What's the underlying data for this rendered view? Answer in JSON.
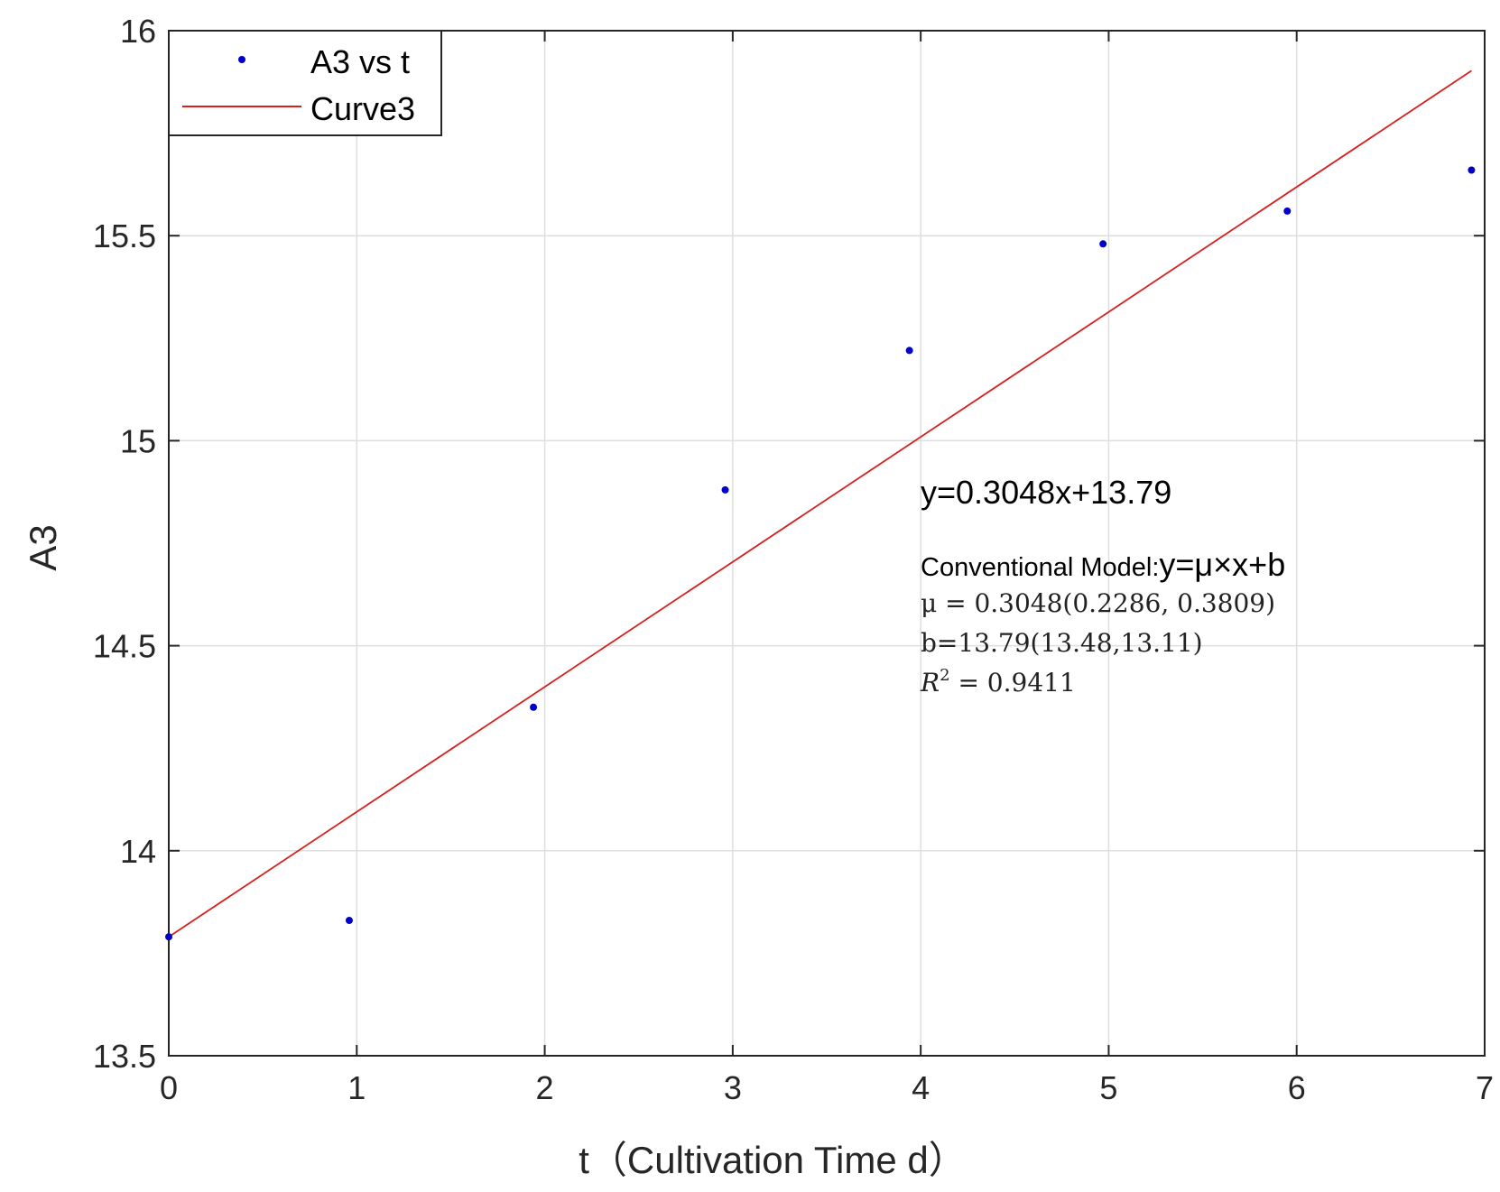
{
  "chart_data": {
    "type": "scatter",
    "title": "",
    "xlabel": "t（Cultivation Time d）",
    "ylabel": "A3",
    "xlim": [
      0,
      7
    ],
    "ylim": [
      13.5,
      16
    ],
    "x_ticks": [
      "0",
      "1",
      "2",
      "3",
      "4",
      "5",
      "6",
      "7"
    ],
    "y_ticks": [
      "13.5",
      "14",
      "14.5",
      "15",
      "15.5",
      "16"
    ],
    "grid": true,
    "legend_position": "top-left",
    "series": [
      {
        "name": "A3 vs t",
        "kind": "scatter",
        "color": "#0000cc",
        "x": [
          0,
          0.96,
          1.94,
          2.96,
          3.94,
          4.97,
          5.95,
          6.93
        ],
        "y": [
          13.79,
          13.83,
          14.35,
          14.88,
          15.22,
          15.48,
          15.56,
          15.66
        ]
      },
      {
        "name": "Curve3",
        "kind": "line",
        "color": "#d62020",
        "slope": 0.3048,
        "intercept": 13.79,
        "x": [
          0,
          6.93
        ]
      }
    ],
    "annotations": {
      "equation": "y=0.3048x+13.79",
      "model_label": "Conventional Model:",
      "model_formula": "y=μ×x+b",
      "mu_line": "μ = 0.3048(0.2286, 0.3809)",
      "b_line": "b=13.79(13.48,13.11)",
      "r2_symbol": "R",
      "r2_exponent": "2",
      "r2_value": " = 0.9411"
    }
  }
}
